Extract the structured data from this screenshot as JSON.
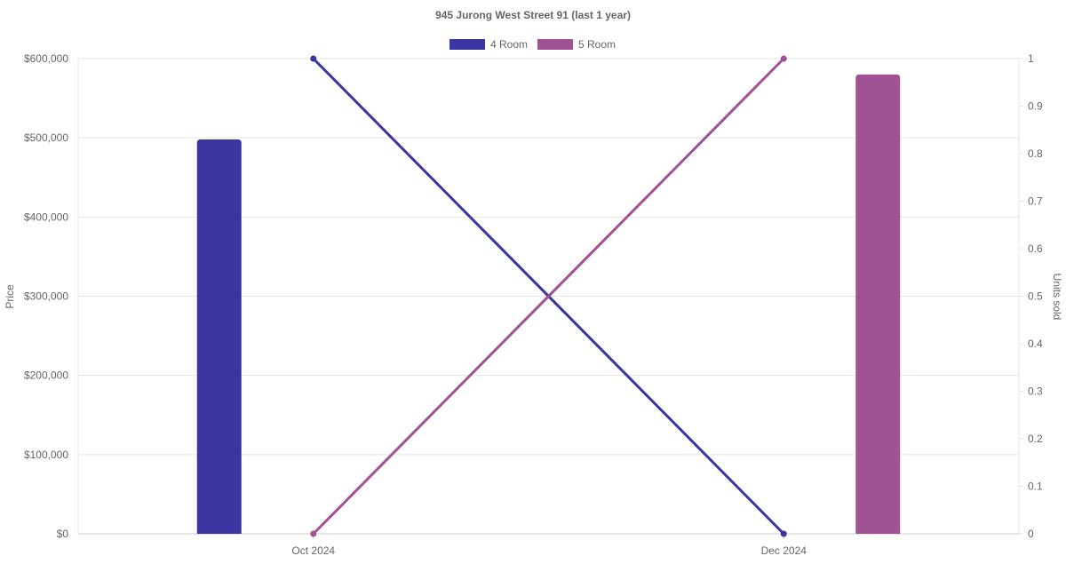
{
  "chart_data": {
    "type": "bar",
    "title": "945 Jurong West Street 91 (last 1 year)",
    "categories": [
      "Oct 2024",
      "Dec 2024"
    ],
    "y_left": {
      "label": "Price",
      "lim": [
        0,
        600000
      ],
      "ticks": [
        "$0",
        "$100,000",
        "$200,000",
        "$300,000",
        "$400,000",
        "$500,000",
        "$600,000"
      ]
    },
    "y_right": {
      "label": "Units sold",
      "lim": [
        0,
        1
      ],
      "ticks": [
        "0",
        "0.1",
        "0.2",
        "0.3",
        "0.4",
        "0.5",
        "0.6",
        "0.7",
        "0.8",
        "0.9",
        "1"
      ]
    },
    "legend_position": "top",
    "grid": true,
    "series": [
      {
        "name": "4 Room",
        "color": "#3a35a0",
        "price": [
          498000,
          0
        ],
        "units": [
          1,
          0
        ]
      },
      {
        "name": "5 Room",
        "color": "#a05295",
        "price": [
          0,
          580000
        ],
        "units": [
          0,
          1
        ]
      }
    ]
  }
}
